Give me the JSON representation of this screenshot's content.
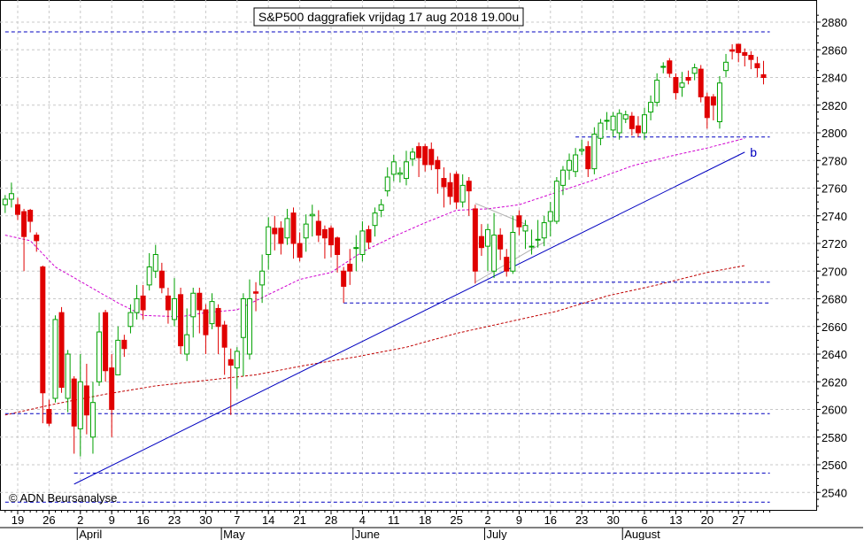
{
  "chart_data": {
    "type": "candlestick",
    "title": "S&P500 daggrafiek vrijdag 17 aug 2018 19.00u",
    "watermark": "© ADN Beursanalyse",
    "ylim": [
      2520,
      2890
    ],
    "y_ticks": [
      2540,
      2560,
      2580,
      2600,
      2620,
      2640,
      2660,
      2680,
      2700,
      2720,
      2740,
      2760,
      2780,
      2800,
      2820,
      2840,
      2860,
      2880
    ],
    "x_day_ticks": [
      {
        "label": "19",
        "day": 0
      },
      {
        "label": "26",
        "day": 5
      },
      {
        "label": "2",
        "day": 10
      },
      {
        "label": "9",
        "day": 15
      },
      {
        "label": "16",
        "day": 20
      },
      {
        "label": "23",
        "day": 25
      },
      {
        "label": "30",
        "day": 30
      },
      {
        "label": "7",
        "day": 35
      },
      {
        "label": "14",
        "day": 40
      },
      {
        "label": "21",
        "day": 45
      },
      {
        "label": "28",
        "day": 50
      },
      {
        "label": "4",
        "day": 55
      },
      {
        "label": "11",
        "day": 60
      },
      {
        "label": "18",
        "day": 65
      },
      {
        "label": "25",
        "day": 70
      },
      {
        "label": "2",
        "day": 75
      },
      {
        "label": "9",
        "day": 80
      },
      {
        "label": "16",
        "day": 85
      },
      {
        "label": "23",
        "day": 90
      },
      {
        "label": "30",
        "day": 95
      },
      {
        "label": "6",
        "day": 100
      },
      {
        "label": "13",
        "day": 105
      },
      {
        "label": "20",
        "day": 110
      },
      {
        "label": "27",
        "day": 115
      }
    ],
    "x_month_labels": [
      {
        "label": "April",
        "day": 10
      },
      {
        "label": "May",
        "day": 33
      },
      {
        "label": "June",
        "day": 54
      },
      {
        "label": "July",
        "day": 75
      },
      {
        "label": "August",
        "day": 97
      }
    ],
    "candles": [
      [
        -2,
        2748,
        2752,
        2755,
        2742
      ],
      [
        -1,
        2752,
        2756,
        2764,
        2746
      ],
      [
        0,
        2748,
        2741,
        2753,
        2737
      ],
      [
        1,
        2743,
        2725,
        2745,
        2700
      ],
      [
        2,
        2744,
        2736,
        2745,
        2728
      ],
      [
        3,
        2726,
        2722,
        2728,
        2714
      ],
      [
        4,
        2703,
        2612,
        2704,
        2590
      ],
      [
        5,
        2600,
        2590,
        2607,
        2588
      ],
      [
        6,
        2608,
        2665,
        2668,
        2605
      ],
      [
        7,
        2670,
        2616,
        2674,
        2612
      ],
      [
        8,
        2608,
        2640,
        2643,
        2598
      ],
      [
        9,
        2622,
        2588,
        2624,
        2568
      ],
      [
        10,
        2586,
        2620,
        2640,
        2566
      ],
      [
        11,
        2617,
        2596,
        2633,
        2582
      ],
      [
        12,
        2580,
        2605,
        2620,
        2568
      ],
      [
        13,
        2620,
        2656,
        2670,
        2617
      ],
      [
        14,
        2670,
        2628,
        2672,
        2620
      ],
      [
        15,
        2630,
        2600,
        2640,
        2580
      ],
      [
        16,
        2625,
        2650,
        2660,
        2625
      ],
      [
        17,
        2650,
        2644,
        2654,
        2638
      ],
      [
        18,
        2660,
        2670,
        2676,
        2655
      ],
      [
        19,
        2670,
        2680,
        2690,
        2665
      ],
      [
        20,
        2682,
        2672,
        2690,
        2665
      ],
      [
        21,
        2690,
        2703,
        2713,
        2686
      ],
      [
        22,
        2700,
        2712,
        2719,
        2695
      ],
      [
        23,
        2700,
        2688,
        2706,
        2684
      ],
      [
        24,
        2682,
        2672,
        2688,
        2662
      ],
      [
        25,
        2665,
        2680,
        2695,
        2660
      ],
      [
        26,
        2683,
        2646,
        2688,
        2640
      ],
      [
        27,
        2640,
        2654,
        2673,
        2635
      ],
      [
        28,
        2667,
        2684,
        2688,
        2652
      ],
      [
        29,
        2684,
        2672,
        2688,
        2655
      ],
      [
        30,
        2672,
        2654,
        2676,
        2640
      ],
      [
        31,
        2662,
        2678,
        2684,
        2658
      ],
      [
        32,
        2673,
        2660,
        2676,
        2640
      ],
      [
        33,
        2661,
        2645,
        2664,
        2625
      ],
      [
        34,
        2636,
        2632,
        2644,
        2596
      ],
      [
        35,
        2630,
        2642,
        2645,
        2615
      ],
      [
        36,
        2652,
        2680,
        2684,
        2624
      ],
      [
        37,
        2640,
        2680,
        2694,
        2636
      ],
      [
        38,
        2685,
        2684,
        2692,
        2671
      ],
      [
        39,
        2690,
        2700,
        2712,
        2677
      ],
      [
        40,
        2712,
        2732,
        2739,
        2701
      ],
      [
        41,
        2731,
        2727,
        2740,
        2715
      ],
      [
        42,
        2731,
        2720,
        2736,
        2712
      ],
      [
        43,
        2724,
        2738,
        2745,
        2719
      ],
      [
        44,
        2742,
        2720,
        2746,
        2709
      ],
      [
        45,
        2720,
        2710,
        2728,
        2707
      ],
      [
        46,
        2724,
        2734,
        2741,
        2714
      ],
      [
        47,
        2740,
        2741,
        2748,
        2725
      ],
      [
        48,
        2736,
        2726,
        2744,
        2721
      ],
      [
        49,
        2730,
        2724,
        2733,
        2709
      ],
      [
        50,
        2731,
        2719,
        2733,
        2710
      ],
      [
        51,
        2724,
        2712,
        2725,
        2699
      ],
      [
        52,
        2700,
        2689,
        2703,
        2677
      ],
      [
        53,
        2705,
        2700,
        2716,
        2690
      ],
      [
        54,
        2717,
        2717,
        2726,
        2700
      ],
      [
        55,
        2712,
        2729,
        2736,
        2707
      ],
      [
        56,
        2730,
        2721,
        2733,
        2716
      ],
      [
        57,
        2733,
        2742,
        2746,
        2725
      ],
      [
        58,
        2744,
        2748,
        2752,
        2739
      ],
      [
        59,
        2758,
        2768,
        2775,
        2754
      ],
      [
        60,
        2770,
        2779,
        2784,
        2765
      ],
      [
        61,
        2770,
        2771,
        2775,
        2764
      ],
      [
        62,
        2767,
        2779,
        2787,
        2762
      ],
      [
        63,
        2781,
        2786,
        2789,
        2776
      ],
      [
        64,
        2790,
        2782,
        2793,
        2768
      ],
      [
        65,
        2790,
        2777,
        2792,
        2772
      ],
      [
        66,
        2788,
        2777,
        2793,
        2773
      ],
      [
        67,
        2780,
        2774,
        2783,
        2756
      ],
      [
        68,
        2767,
        2761,
        2775,
        2746
      ],
      [
        69,
        2764,
        2754,
        2771,
        2748
      ],
      [
        70,
        2770,
        2750,
        2772,
        2745
      ],
      [
        71,
        2750,
        2762,
        2770,
        2746
      ],
      [
        72,
        2765,
        2758,
        2768,
        2740
      ],
      [
        73,
        2745,
        2700,
        2748,
        2691
      ],
      [
        74,
        2725,
        2717,
        2734,
        2711
      ],
      [
        75,
        2718,
        2730,
        2734,
        2700
      ],
      [
        76,
        2700,
        2726,
        2742,
        2695
      ],
      [
        77,
        2726,
        2716,
        2731,
        2708
      ],
      [
        78,
        2710,
        2700,
        2716,
        2696
      ],
      [
        79,
        2700,
        2728,
        2740,
        2698
      ],
      [
        80,
        2740,
        2732,
        2744,
        2726
      ],
      [
        81,
        2729,
        2733,
        2737,
        2716
      ],
      [
        82,
        2718,
        2718,
        2730,
        2712
      ],
      [
        83,
        2723,
        2723,
        2737,
        2717
      ],
      [
        84,
        2724,
        2735,
        2740,
        2718
      ],
      [
        85,
        2736,
        2743,
        2750,
        2725
      ],
      [
        86,
        2736,
        2765,
        2768,
        2734
      ],
      [
        87,
        2762,
        2773,
        2776,
        2755
      ],
      [
        88,
        2773,
        2780,
        2785,
        2766
      ],
      [
        89,
        2772,
        2784,
        2789,
        2768
      ],
      [
        90,
        2787,
        2788,
        2795,
        2784
      ],
      [
        91,
        2790,
        2774,
        2794,
        2768
      ],
      [
        92,
        2774,
        2799,
        2804,
        2770
      ],
      [
        93,
        2796,
        2807,
        2810,
        2791
      ],
      [
        94,
        2809,
        2809,
        2815,
        2802
      ],
      [
        95,
        2802,
        2812,
        2815,
        2797
      ],
      [
        96,
        2800,
        2814,
        2817,
        2795
      ],
      [
        97,
        2810,
        2813,
        2816,
        2807
      ],
      [
        98,
        2812,
        2803,
        2815,
        2798
      ],
      [
        99,
        2805,
        2800,
        2812,
        2797
      ],
      [
        100,
        2800,
        2813,
        2818,
        2795
      ],
      [
        101,
        2815,
        2822,
        2827,
        2809
      ],
      [
        102,
        2822,
        2838,
        2843,
        2819
      ],
      [
        103,
        2848,
        2848,
        2851,
        2843
      ],
      [
        104,
        2852,
        2843,
        2854,
        2840
      ],
      [
        105,
        2840,
        2829,
        2843,
        2824
      ],
      [
        106,
        2833,
        2836,
        2844,
        2826
      ],
      [
        107,
        2840,
        2838,
        2845,
        2835
      ],
      [
        108,
        2843,
        2847,
        2850,
        2838
      ],
      [
        109,
        2846,
        2826,
        2849,
        2822
      ],
      [
        110,
        2826,
        2811,
        2829,
        2803
      ],
      [
        111,
        2826,
        2820,
        2828,
        2809
      ],
      [
        112,
        2808,
        2836,
        2841,
        2803
      ],
      [
        113,
        2845,
        2851,
        2857,
        2840
      ],
      [
        114,
        2860,
        2859,
        2864,
        2853
      ],
      [
        115,
        2864,
        2858,
        2864,
        2851
      ],
      [
        116,
        2858,
        2856,
        2861,
        2848
      ],
      [
        117,
        2856,
        2853,
        2859,
        2846
      ],
      [
        118,
        2850,
        2847,
        2855,
        2840
      ],
      [
        119,
        2842,
        2840,
        2852,
        2835
      ]
    ],
    "ma_short": [
      [
        -2,
        2726
      ],
      [
        2,
        2722
      ],
      [
        6,
        2703
      ],
      [
        11,
        2690
      ],
      [
        16,
        2677
      ],
      [
        20,
        2668
      ],
      [
        26,
        2667
      ],
      [
        30,
        2670
      ],
      [
        35,
        2672
      ],
      [
        40,
        2683
      ],
      [
        45,
        2694
      ],
      [
        50,
        2699
      ],
      [
        55,
        2714
      ],
      [
        60,
        2725
      ],
      [
        65,
        2735
      ],
      [
        70,
        2744
      ],
      [
        75,
        2745
      ],
      [
        80,
        2748
      ],
      [
        86,
        2757
      ],
      [
        92,
        2766
      ],
      [
        98,
        2776
      ],
      [
        104,
        2783
      ],
      [
        110,
        2789
      ],
      [
        116,
        2796
      ]
    ],
    "ma_long": [
      [
        -2,
        2596
      ],
      [
        6,
        2604
      ],
      [
        14,
        2611
      ],
      [
        22,
        2617
      ],
      [
        30,
        2621
      ],
      [
        38,
        2625
      ],
      [
        46,
        2632
      ],
      [
        54,
        2638
      ],
      [
        62,
        2645
      ],
      [
        70,
        2655
      ],
      [
        78,
        2663
      ],
      [
        86,
        2671
      ],
      [
        94,
        2682
      ],
      [
        102,
        2690
      ],
      [
        110,
        2699
      ],
      [
        116,
        2704
      ]
    ],
    "support_lines": [
      {
        "y": 2873,
        "from": -2,
        "to": 120
      },
      {
        "y": 2797,
        "from": 89,
        "to": 120
      },
      {
        "y": 2692,
        "from": 75,
        "to": 120
      },
      {
        "y": 2677,
        "from": 52,
        "to": 120
      },
      {
        "y": 2597,
        "from": -2,
        "to": 120
      },
      {
        "y": 2554,
        "from": 9,
        "to": 120
      },
      {
        "y": 2533,
        "from": -2,
        "to": 120
      }
    ],
    "trendline": {
      "from": [
        9,
        2546
      ],
      "to": [
        116,
        2786
      ],
      "label": "b"
    },
    "fan_lines": [
      {
        "from": [
          73,
          2749
        ],
        "to": [
          81,
          2734
        ]
      },
      {
        "from": [
          73,
          2692
        ],
        "to": [
          84,
          2721
        ]
      }
    ],
    "colors": {
      "up": "#00a000",
      "down": "#e00000",
      "ma_short": "#d000d0",
      "ma_long": "#c00000",
      "trend": "#0000c0",
      "support": "#0000c0",
      "grid": "#c8c8c8"
    }
  }
}
